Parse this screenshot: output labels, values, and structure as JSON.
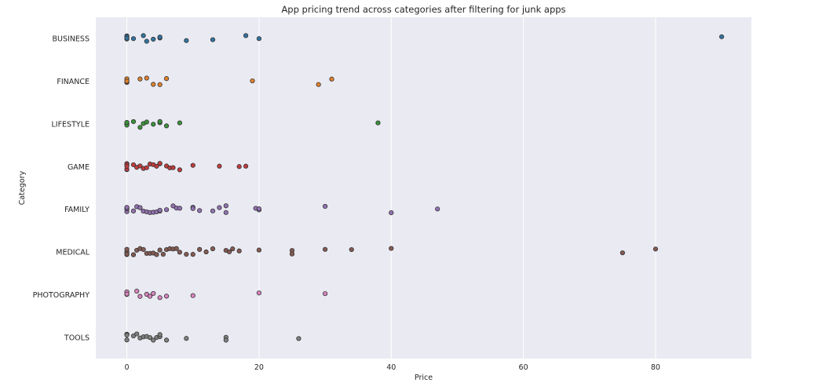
{
  "chart_data": {
    "type": "scatter",
    "title": "App pricing trend across categories after filtering for junk apps",
    "xlabel": "Price",
    "ylabel": "Category",
    "xlim": [
      -4.7,
      94.5
    ],
    "xticks": [
      0,
      20,
      40,
      60,
      80
    ],
    "grid": true,
    "categories": [
      "BUSINESS",
      "FINANCE",
      "LIFESTYLE",
      "GAME",
      "FAMILY",
      "MEDICAL",
      "PHOTOGRAPHY",
      "TOOLS"
    ],
    "series": [
      {
        "category": "BUSINESS",
        "color": "#3274a1",
        "points": [
          0,
          0,
          0,
          0,
          0,
          1,
          2.5,
          3,
          4,
          5,
          5,
          9,
          13,
          18,
          20,
          90
        ]
      },
      {
        "category": "FINANCE",
        "color": "#e1812c",
        "points": [
          0,
          0,
          0,
          0,
          2,
          3,
          4,
          5,
          6,
          19,
          29,
          31
        ]
      },
      {
        "category": "LIFESTYLE",
        "color": "#3a923a",
        "points": [
          0,
          0,
          0,
          0,
          1,
          2,
          2.5,
          3,
          4,
          5,
          5,
          6,
          8,
          38
        ]
      },
      {
        "category": "GAME",
        "color": "#c03d3e",
        "points": [
          0,
          0,
          0,
          0,
          0,
          1,
          1.5,
          2,
          2.5,
          3,
          3.5,
          4,
          4.5,
          5,
          5,
          6,
          6.5,
          7,
          8,
          10,
          14,
          17,
          18
        ]
      },
      {
        "category": "FAMILY",
        "color": "#9372b2",
        "points": [
          0,
          0,
          0,
          0,
          0,
          1,
          1.5,
          2,
          2.5,
          3,
          3.5,
          4,
          4.5,
          5,
          5,
          6,
          7,
          7.5,
          8,
          10,
          10,
          11,
          13,
          14,
          15,
          15,
          19.5,
          20,
          20,
          30,
          40,
          47
        ]
      },
      {
        "category": "MEDICAL",
        "color": "#845b53",
        "points": [
          0,
          0,
          0,
          0,
          0,
          1,
          1.5,
          2,
          2.5,
          3,
          3.5,
          4,
          4.5,
          5,
          5.5,
          6,
          6.5,
          7,
          7.5,
          8,
          9,
          10,
          11,
          12,
          13,
          15,
          15.5,
          16,
          17,
          20,
          25,
          25,
          30,
          34,
          40,
          75,
          80
        ]
      },
      {
        "category": "PHOTOGRAPHY",
        "color": "#d684bd",
        "points": [
          0,
          0,
          0,
          0,
          1.5,
          2,
          3,
          3.5,
          4,
          5,
          6,
          10,
          20,
          30
        ]
      },
      {
        "category": "TOOLS",
        "color": "#7f7f7f",
        "points": [
          0,
          0,
          0,
          0,
          0,
          1,
          1.5,
          2,
          2.5,
          3,
          3.5,
          4,
          4.5,
          5,
          5,
          6,
          9,
          15,
          15,
          26
        ]
      }
    ]
  }
}
